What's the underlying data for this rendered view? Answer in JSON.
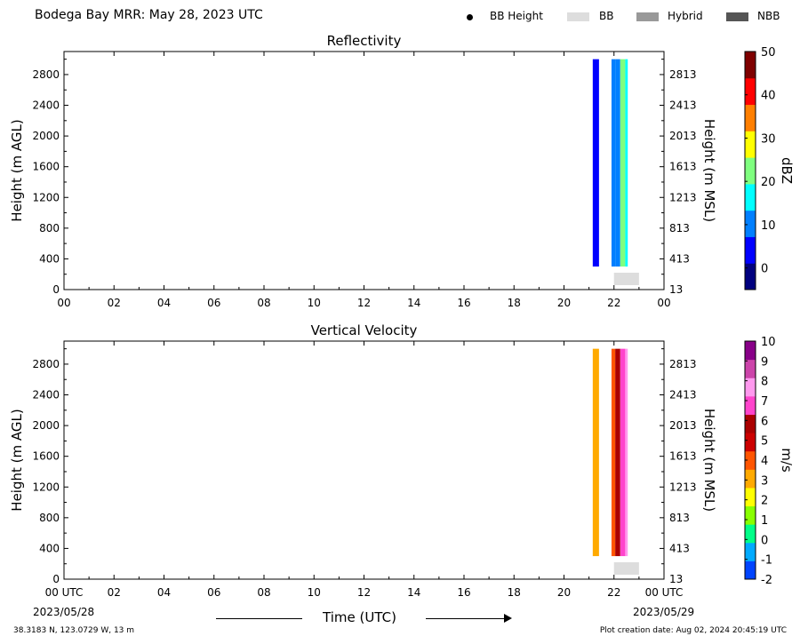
{
  "header": {
    "title": "Bodega Bay MRR:  May 28, 2023 UTC",
    "legend": [
      {
        "label": "BB Height",
        "marker": "dot",
        "color": "#000000"
      },
      {
        "label": "BB",
        "marker": "box",
        "color": "#dddddd"
      },
      {
        "label": "Hybrid",
        "marker": "box",
        "color": "#999999"
      },
      {
        "label": "NBB",
        "marker": "box",
        "color": "#555555"
      }
    ]
  },
  "footer": {
    "location": "38.3183 N, 123.0729 W, 13 m",
    "creation": "Plot creation date: Aug 02, 2024 20:45:19 UTC",
    "time_label": "Time (UTC)",
    "start_date": "2023/05/28",
    "end_date": "2023/05/29"
  },
  "chart_data": [
    {
      "type": "heatmap",
      "title": "Reflectivity",
      "ylabel": "Height (m AGL)",
      "ylabel_right": "Height (m MSL)",
      "colorbar_label": "dBZ",
      "xlim": [
        0,
        24
      ],
      "ylim": [
        0,
        3100
      ],
      "x_ticks": [
        "00",
        "02",
        "04",
        "06",
        "08",
        "10",
        "12",
        "14",
        "16",
        "18",
        "20",
        "22",
        "00"
      ],
      "y_ticks": [
        "0",
        "400",
        "800",
        "1200",
        "1600",
        "2000",
        "2400",
        "2800"
      ],
      "y_ticks_right": [
        "13",
        "413",
        "813",
        "1213",
        "1613",
        "2013",
        "2413",
        "2813"
      ],
      "colorbar_range": [
        -5,
        50
      ],
      "colorbar_ticks": [
        "0",
        "10",
        "20",
        "30",
        "40",
        "50"
      ],
      "colorbar_colors": [
        "#00007f",
        "#0000ff",
        "#007fff",
        "#00ffff",
        "#7fff7f",
        "#ffff00",
        "#ff7f00",
        "#ff0000",
        "#7f0000"
      ],
      "echo_columns": [
        {
          "x": [
            21.15,
            21.4
          ],
          "y": [
            300,
            3000
          ],
          "value": 5
        },
        {
          "x": [
            21.9,
            22.05
          ],
          "y": [
            300,
            3000
          ],
          "value": 8
        },
        {
          "x": [
            22.05,
            22.25
          ],
          "y": [
            300,
            3000
          ],
          "value": 13
        },
        {
          "x": [
            22.25,
            22.45
          ],
          "y": [
            300,
            3000
          ],
          "value": 20
        },
        {
          "x": [
            22.45,
            22.55
          ],
          "y": [
            300,
            3000
          ],
          "value": 16
        }
      ],
      "bb_markers": [
        {
          "x": [
            22.0,
            23.0
          ],
          "type": "BB"
        }
      ]
    },
    {
      "type": "heatmap",
      "title": "Vertical Velocity",
      "ylabel": "Height (m AGL)",
      "ylabel_right": "Height (m MSL)",
      "colorbar_label": "m/s",
      "xlim": [
        0,
        24
      ],
      "ylim": [
        0,
        3100
      ],
      "x_ticks": [
        "00 UTC",
        "02",
        "04",
        "06",
        "08",
        "10",
        "12",
        "14",
        "16",
        "18",
        "20",
        "22",
        "00 UTC"
      ],
      "y_ticks": [
        "0",
        "400",
        "800",
        "1200",
        "1600",
        "2000",
        "2400",
        "2800"
      ],
      "y_ticks_right": [
        "13",
        "413",
        "813",
        "1213",
        "1613",
        "2013",
        "2413",
        "2813"
      ],
      "colorbar_range": [
        -2,
        10
      ],
      "colorbar_ticks": [
        "-2",
        "-1",
        "0",
        "1",
        "2",
        "3",
        "4",
        "5",
        "6",
        "7",
        "8",
        "9",
        "10"
      ],
      "colorbar_colors": [
        "#0044ff",
        "#00aaff",
        "#00ff88",
        "#88ff00",
        "#ffff00",
        "#ffaa00",
        "#ff5500",
        "#cc0000",
        "#aa0000",
        "#ff44cc",
        "#ff99ee",
        "#cc44aa",
        "#880088"
      ],
      "echo_columns": [
        {
          "x": [
            21.15,
            21.4
          ],
          "y": [
            300,
            3000
          ],
          "value": 3
        },
        {
          "x": [
            21.9,
            22.05
          ],
          "y": [
            300,
            3000
          ],
          "value": 4
        },
        {
          "x": [
            22.05,
            22.25
          ],
          "y": [
            300,
            3000
          ],
          "value": 6
        },
        {
          "x": [
            22.25,
            22.45
          ],
          "y": [
            300,
            3000
          ],
          "value": 7
        },
        {
          "x": [
            22.45,
            22.55
          ],
          "y": [
            300,
            3000
          ],
          "value": 8
        }
      ],
      "bb_markers": [
        {
          "x": [
            22.0,
            23.0
          ],
          "type": "BB"
        }
      ]
    }
  ]
}
